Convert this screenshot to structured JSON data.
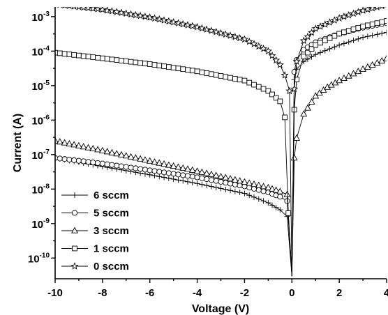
{
  "chart_data": {
    "type": "line",
    "xlabel": "Voltage (V)",
    "ylabel": "Current (A)",
    "xlim": [
      -10,
      4
    ],
    "ylim_log10": [
      -10.6,
      -2.72
    ],
    "y_scale": "log",
    "x_ticks": [
      "-10",
      "-8",
      "-6",
      "-4",
      "-2",
      "0",
      "2",
      "4"
    ],
    "y_ticks": [
      {
        "base": "10",
        "exp": "-3",
        "value": 0.001
      },
      {
        "base": "10",
        "exp": "-4",
        "value": 0.0001
      },
      {
        "base": "10",
        "exp": "-5",
        "value": 1e-05
      },
      {
        "base": "10",
        "exp": "-6",
        "value": 1e-06
      },
      {
        "base": "10",
        "exp": "-7",
        "value": 1e-07
      },
      {
        "base": "10",
        "exp": "-8",
        "value": 1e-08
      },
      {
        "base": "10",
        "exp": "-9",
        "value": 1e-09
      },
      {
        "base": "10",
        "exp": "-10",
        "value": 1e-10
      }
    ],
    "legend_position": "bottom-left",
    "grid": false,
    "series": [
      {
        "name": "6 sccm",
        "marker": "plus",
        "x": [
          -10,
          -8,
          -6,
          -4,
          -2,
          -1,
          -0.5,
          -0.2,
          0,
          0.1,
          0.2,
          0.5,
          1,
          2,
          3,
          4
        ],
        "y": [
          8e-08,
          4.5e-08,
          2.6e-08,
          1.45e-08,
          7.5e-09,
          4e-09,
          2.5e-09,
          1.6e-09,
          3e-11,
          1.5e-05,
          3e-05,
          5e-05,
          8e-05,
          0.00015,
          0.00025,
          0.00035
        ]
      },
      {
        "name": "5 sccm",
        "marker": "circle",
        "x": [
          -10,
          -8,
          -6,
          -4,
          -2,
          -1,
          -0.5,
          -0.2,
          0,
          0.1,
          0.2,
          0.5,
          1,
          2,
          3,
          4
        ],
        "y": [
          8e-08,
          5.5e-08,
          3.5e-08,
          2.2e-08,
          1.2e-08,
          8e-09,
          6e-09,
          4.5e-09,
          3e-11,
          2.5e-05,
          5.5e-05,
          0.00011,
          0.00018,
          0.00032,
          0.00048,
          0.00065
        ]
      },
      {
        "name": "3 sccm",
        "marker": "triangle",
        "x": [
          -10,
          -8,
          -6,
          -4,
          -2,
          -1,
          -0.5,
          -0.2,
          0,
          0.1,
          0.2,
          0.5,
          1,
          1.5,
          2,
          3,
          4
        ],
        "y": [
          2.5e-07,
          1.3e-07,
          6.5e-08,
          3.3e-08,
          1.6e-08,
          1.1e-08,
          8.5e-09,
          7e-09,
          3e-11,
          8e-08,
          3e-07,
          1.5e-06,
          5e-06,
          9e-06,
          1.4e-05,
          3e-05,
          6e-05
        ]
      },
      {
        "name": "1 sccm",
        "marker": "square",
        "x": [
          -10,
          -8,
          -6,
          -4,
          -2,
          -1,
          -0.5,
          -0.3,
          -0.15,
          0,
          0.1,
          0.2,
          0.5,
          1,
          2,
          3,
          4
        ],
        "y": [
          9e-05,
          6.2e-05,
          4.2e-05,
          2.6e-05,
          1.4e-05,
          7e-06,
          3.5e-06,
          1.2e-06,
          2e-09,
          3e-11,
          2e-06,
          1.5e-05,
          7e-05,
          0.00015,
          0.00032,
          0.00052,
          0.00075
        ]
      },
      {
        "name": "0 sccm",
        "marker": "star",
        "x": [
          -10,
          -8,
          -6,
          -4,
          -2,
          -1,
          -0.5,
          -0.3,
          -0.1,
          0,
          0.1,
          0.2,
          0.5,
          1,
          2,
          3,
          4
        ],
        "y": [
          0.0023,
          0.0016,
          0.00095,
          0.0005,
          0.00022,
          0.0001,
          4e-05,
          2e-05,
          7e-06,
          3e-11,
          8e-06,
          5e-05,
          0.0002,
          0.00045,
          0.0009,
          0.0015,
          0.0022
        ]
      }
    ]
  }
}
